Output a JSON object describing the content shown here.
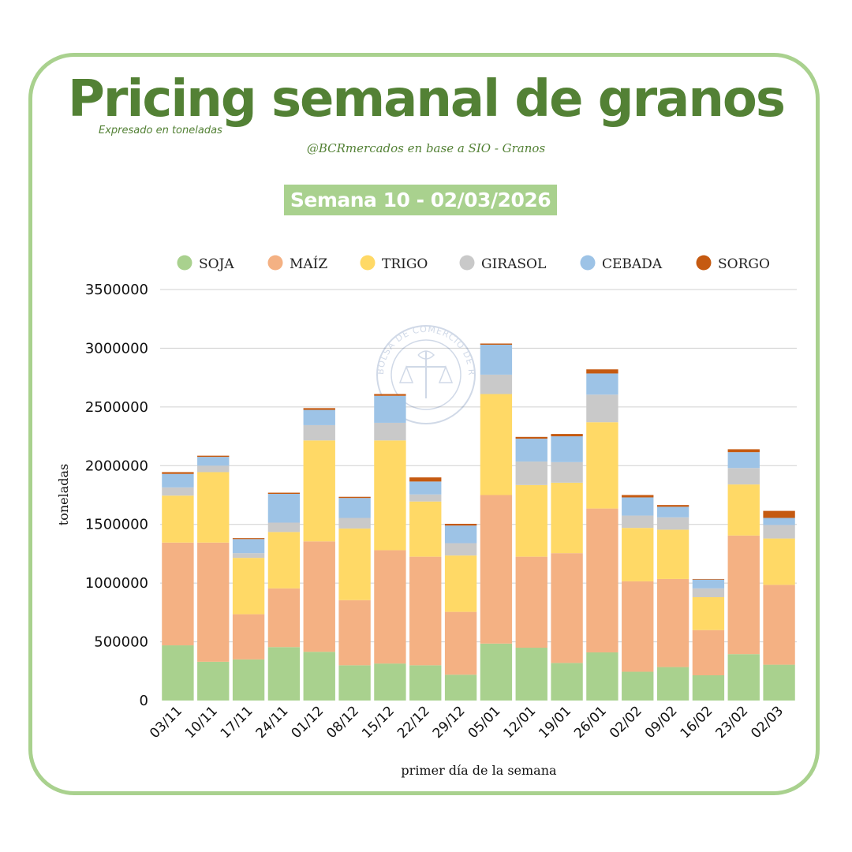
{
  "header": {
    "title": "Pricing semanal de granos",
    "subtitle": "Expresado en toneladas",
    "source": "@BCRmercados en base a SIO - Granos",
    "week_badge": "Semana 10 - 02/03/2026"
  },
  "watermark": {
    "text": "BOLSA DE COMERCIO DE ROSARIO",
    "icon": "bcr-seal-icon"
  },
  "chart_data": {
    "type": "bar",
    "stacked": true,
    "categories": [
      "03/11",
      "10/11",
      "17/11",
      "24/11",
      "01/12",
      "08/12",
      "15/12",
      "22/12",
      "29/12",
      "05/01",
      "12/01",
      "19/01",
      "26/01",
      "02/02",
      "09/02",
      "16/02",
      "23/02",
      "02/03"
    ],
    "series": [
      {
        "name": "SOJA",
        "color": "#a9d18e",
        "values": [
          470000,
          330000,
          350000,
          455000,
          415000,
          300000,
          315000,
          300000,
          220000,
          485000,
          450000,
          320000,
          410000,
          245000,
          285000,
          215000,
          395000,
          305000
        ]
      },
      {
        "name": "MAÍZ",
        "color": "#f4b183",
        "values": [
          875000,
          1015000,
          385000,
          500000,
          940000,
          555000,
          965000,
          925000,
          535000,
          1265000,
          775000,
          935000,
          1225000,
          770000,
          750000,
          385000,
          1010000,
          680000
        ]
      },
      {
        "name": "TRIGO",
        "color": "#ffd966",
        "values": [
          400000,
          600000,
          480000,
          480000,
          860000,
          610000,
          935000,
          470000,
          480000,
          860000,
          610000,
          600000,
          735000,
          455000,
          420000,
          280000,
          435000,
          395000
        ]
      },
      {
        "name": "GIRASOL",
        "color": "#c9c9c9",
        "values": [
          70000,
          55000,
          40000,
          80000,
          130000,
          90000,
          150000,
          60000,
          105000,
          165000,
          200000,
          175000,
          235000,
          105000,
          105000,
          75000,
          140000,
          115000
        ]
      },
      {
        "name": "CEBADA",
        "color": "#9dc3e6",
        "values": [
          115000,
          75000,
          120000,
          245000,
          130000,
          170000,
          230000,
          110000,
          150000,
          255000,
          195000,
          220000,
          180000,
          155000,
          90000,
          75000,
          135000,
          60000
        ]
      },
      {
        "name": "SORGO",
        "color": "#c55a11",
        "values": [
          15000,
          10000,
          8000,
          10000,
          15000,
          10000,
          15000,
          35000,
          15000,
          10000,
          15000,
          20000,
          35000,
          20000,
          15000,
          5000,
          25000,
          60000
        ]
      }
    ],
    "ylim": [
      0,
      3500000
    ],
    "yticks": [
      0,
      500000,
      1000000,
      1500000,
      2000000,
      2500000,
      3000000,
      3500000
    ],
    "xlabel": "primer día de la semana",
    "ylabel": "toneladas",
    "legend_position": "top",
    "grid": true
  }
}
